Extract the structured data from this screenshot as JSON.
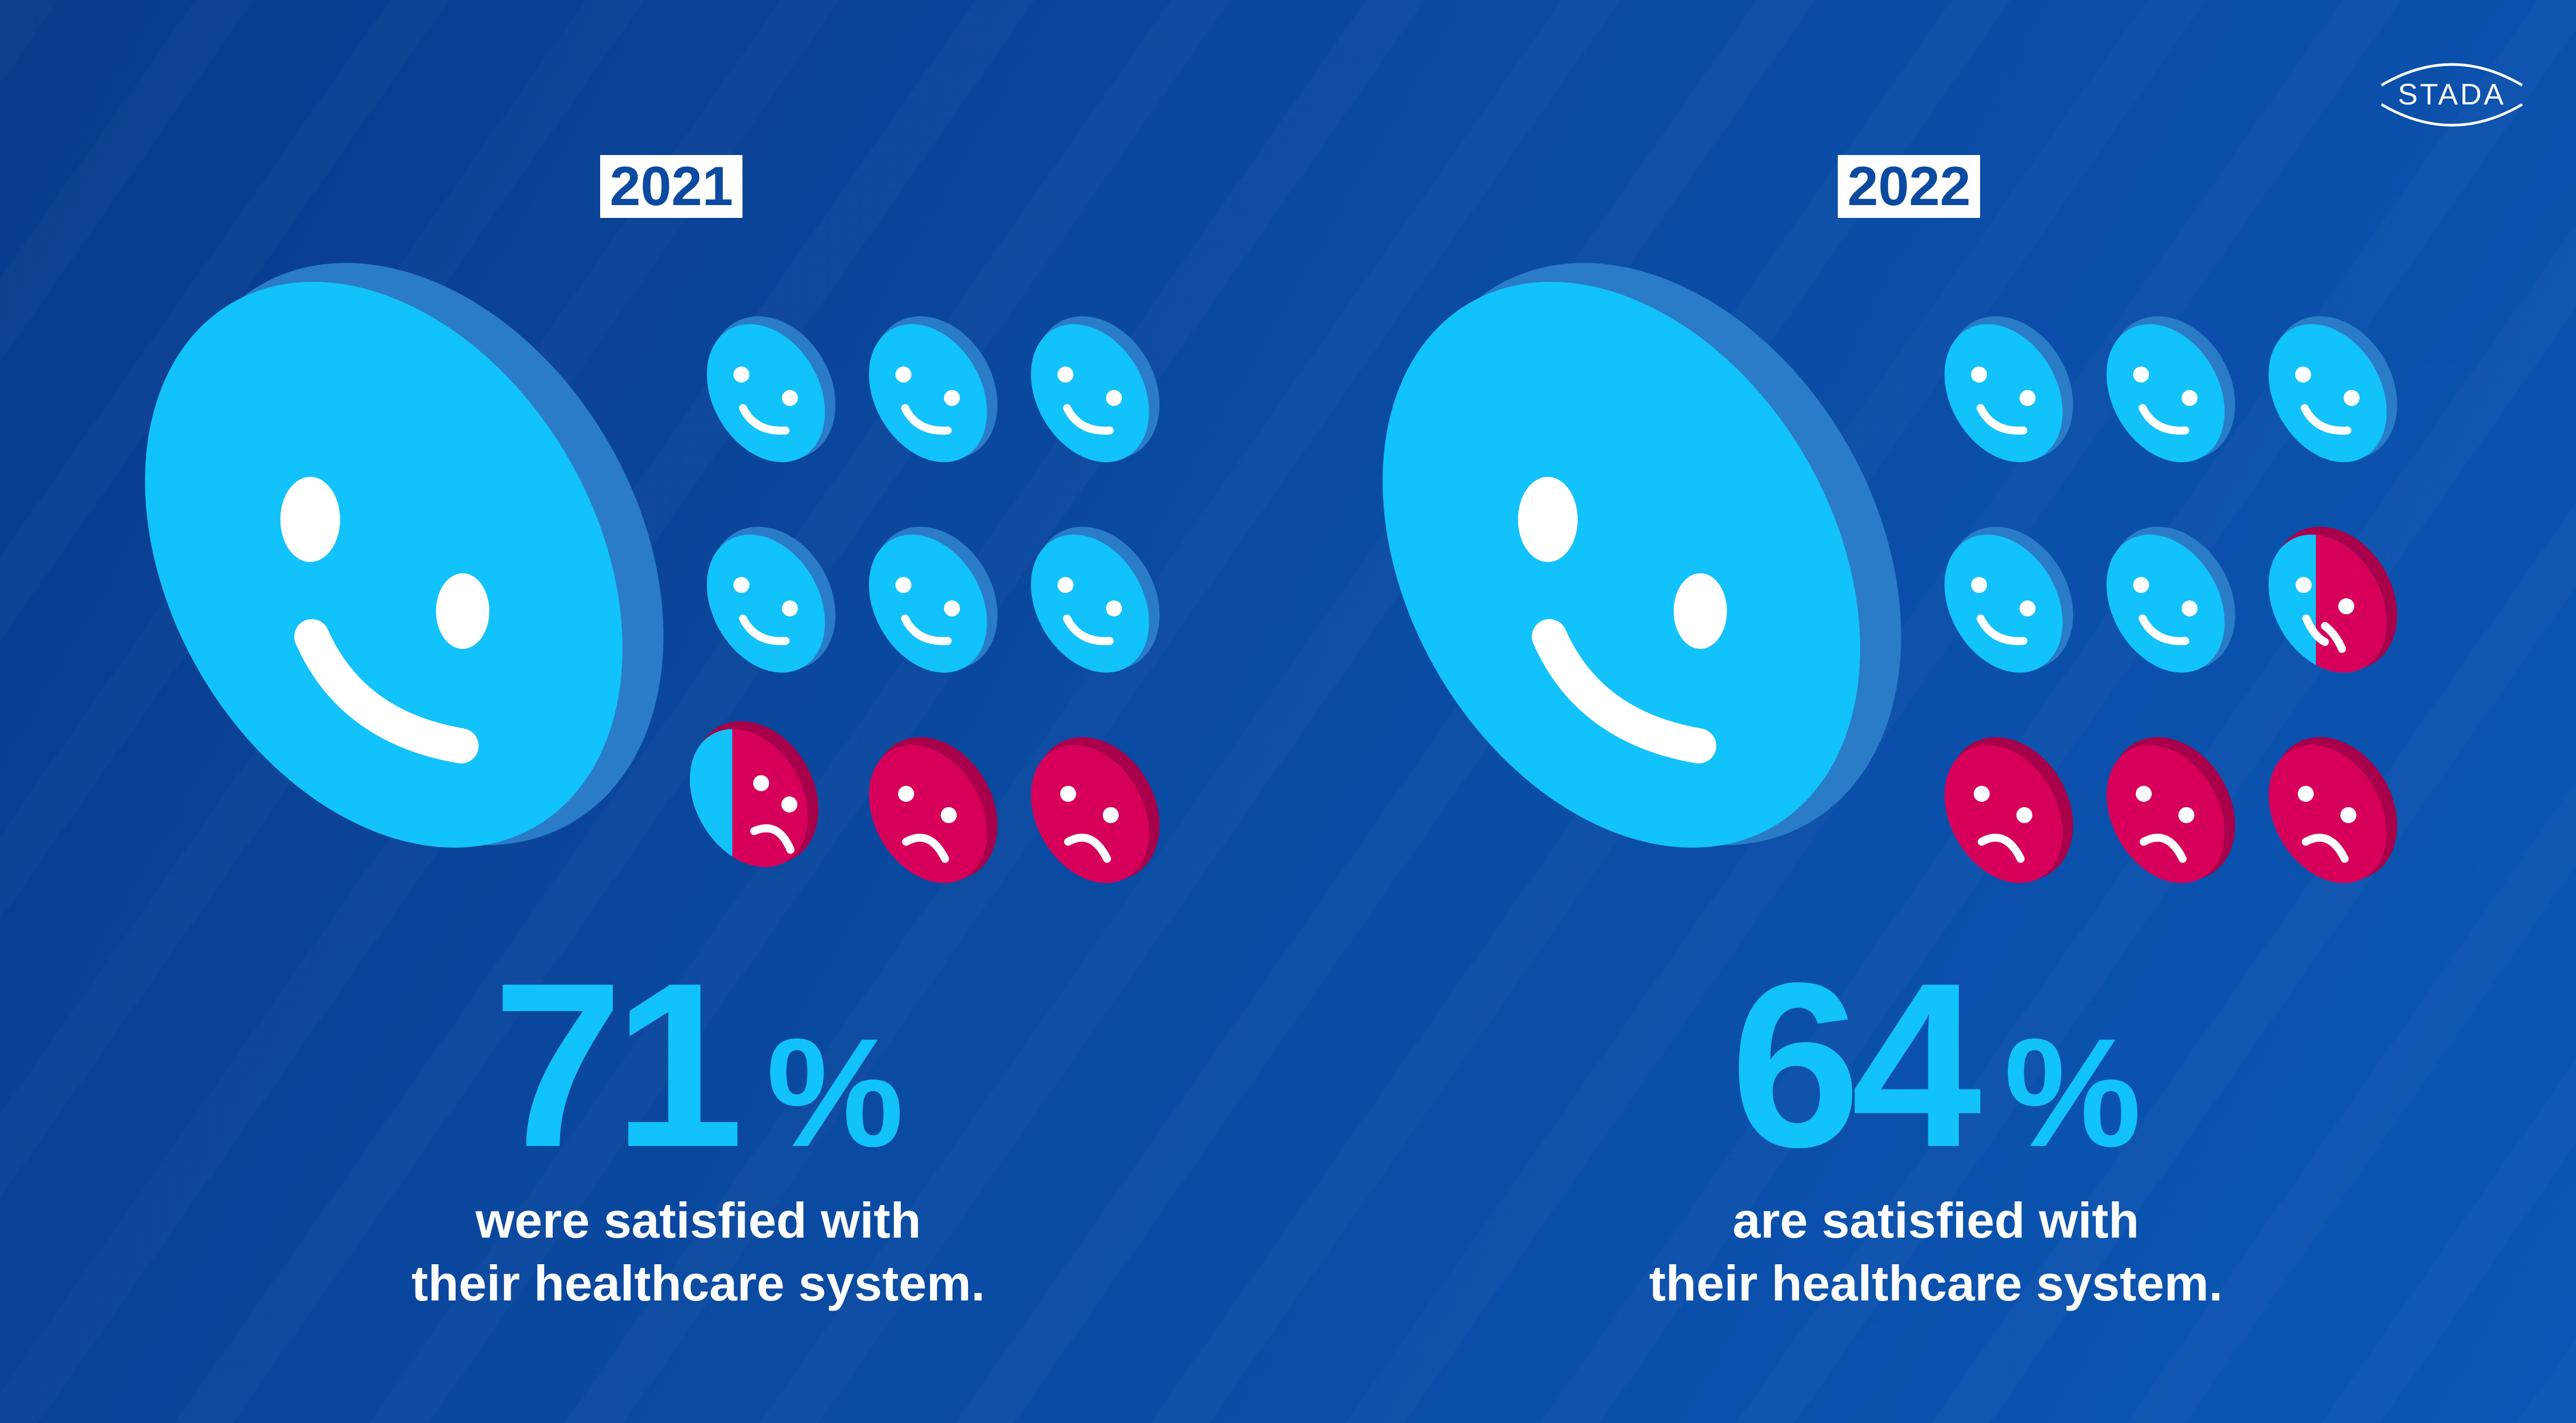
{
  "brand": {
    "name": "STADA",
    "colors": {
      "background_dark": "#093b8c",
      "background_light": "#0b56b4",
      "satisfied_face": "#12c2fa",
      "dissatisfied_face": "#d6005a",
      "white": "#ffffff"
    }
  },
  "panels": [
    {
      "year": "2021",
      "value": "71",
      "unit": "%",
      "caption_line1": "were satisfied with",
      "caption_line2": "their healthcare system.",
      "grid": {
        "satisfied_full": 6,
        "mixed_small_blue_slice": true,
        "dissatisfied_full": 2
      }
    },
    {
      "year": "2022",
      "value": "64",
      "unit": "%",
      "caption_line1": "are satisfied with",
      "caption_line2": "their healthcare system.",
      "grid": {
        "satisfied_full": 5,
        "mixed_half": true,
        "dissatisfied_full": 3
      }
    }
  ],
  "icons": {
    "big_face": "smiley-face-icon",
    "grid_happy": "happy-face-icon",
    "grid_sad": "sad-face-icon"
  }
}
